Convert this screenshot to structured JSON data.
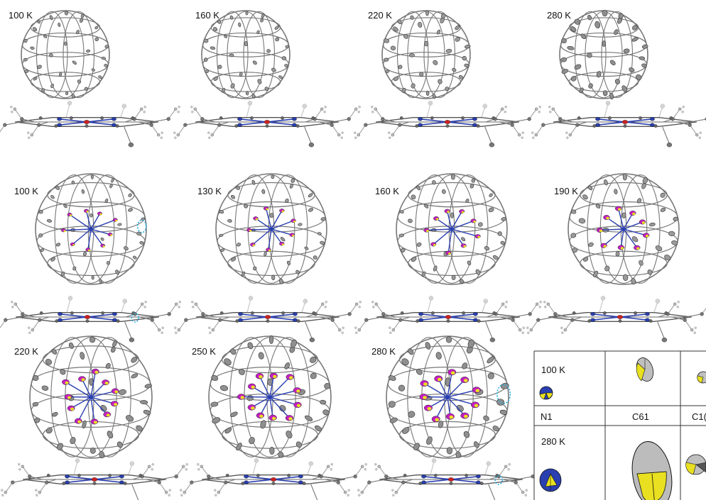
{
  "row1": {
    "labels": [
      "100 K",
      "160 K",
      "220 K",
      "280 K"
    ]
  },
  "row2": {
    "labels": [
      "100 K",
      "130 K",
      "160 K",
      "190 K"
    ]
  },
  "row3": {
    "labels": [
      "220 K",
      "250 K",
      "280 K"
    ]
  },
  "inset": {
    "row_labels": [
      "100 K",
      "280 K"
    ],
    "column_labels": [
      "N1",
      "C61",
      "C1("
    ]
  },
  "colors": {
    "carbon": "#8a8a8a",
    "bond": "#777777",
    "nitrogen": "#2a3fb0",
    "metal": "#cc2222",
    "encapsulated": "#c21ec2",
    "octant": "#e8e020",
    "highlight": "#22aadd"
  }
}
